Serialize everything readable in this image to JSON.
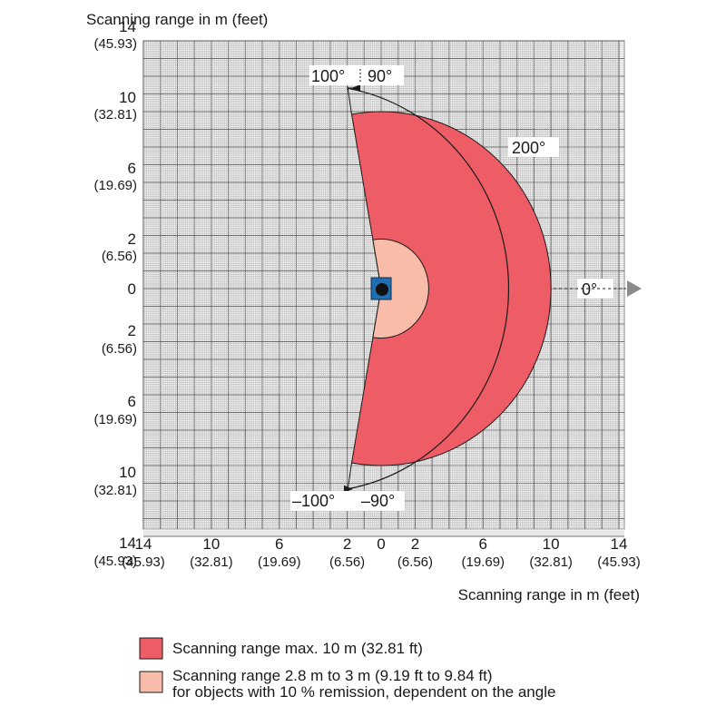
{
  "diagram": {
    "y_axis_title": "Scanning range in m (feet)",
    "x_axis_title": "Scanning range in m (feet)",
    "y_ticks": [
      {
        "m": "14",
        "ft": "(45.93)",
        "v": 14
      },
      {
        "m": "10",
        "ft": "(32.81)",
        "v": 10
      },
      {
        "m": "6",
        "ft": "(19.69)",
        "v": 6
      },
      {
        "m": "2",
        "ft": "(6.56)",
        "v": 2
      },
      {
        "m": "0",
        "ft": "",
        "v": 0
      },
      {
        "m": "2",
        "ft": "(6.56)",
        "v": -2
      },
      {
        "m": "6",
        "ft": "(19.69)",
        "v": -6
      },
      {
        "m": "10",
        "ft": "(32.81)",
        "v": -10
      },
      {
        "m": "14",
        "ft": "(45.93)",
        "v": -14
      }
    ],
    "x_ticks": [
      {
        "m": "14",
        "ft": "(45.93)",
        "v": -14
      },
      {
        "m": "10",
        "ft": "(32.81)",
        "v": -10
      },
      {
        "m": "6",
        "ft": "(19.69)",
        "v": -6
      },
      {
        "m": "2",
        "ft": "(6.56)",
        "v": -2
      },
      {
        "m": "0",
        "ft": "",
        "v": 0
      },
      {
        "m": "2",
        "ft": "(6.56)",
        "v": 2
      },
      {
        "m": "6",
        "ft": "(19.69)",
        "v": 6
      },
      {
        "m": "10",
        "ft": "(32.81)",
        "v": 10
      },
      {
        "m": "14",
        "ft": "(45.93)",
        "v": 14
      }
    ],
    "axis_range_m": [
      -14,
      14
    ],
    "max_range_m": 10,
    "reduced_range_m": 2.8,
    "scan_angle_deg": [
      -100,
      100
    ],
    "angle_labels": {
      "top_100": "100°",
      "top_90": "90°",
      "total": "200°",
      "zero": "0°",
      "bottom_minus_100": "–100°",
      "bottom_minus_90": "–90°"
    },
    "colors": {
      "max_range": "#ee5c66",
      "reduced_range": "#f8bca8",
      "grid": "#9a9a9a",
      "sensor_body": "#1f6fb0"
    },
    "sensor_icon": "sensor-icon",
    "direction_icon": "triangle-right-icon"
  },
  "legend": [
    {
      "label": "Scanning range max. 10 m (32.81 ft)",
      "color": "#ee5c66"
    },
    {
      "label": "Scanning range 2.8 m to 3 m (9.19 ft to 9.84 ft)",
      "label2": "for objects with 10 % remission, dependent on the angle",
      "color": "#f8bca8"
    }
  ]
}
